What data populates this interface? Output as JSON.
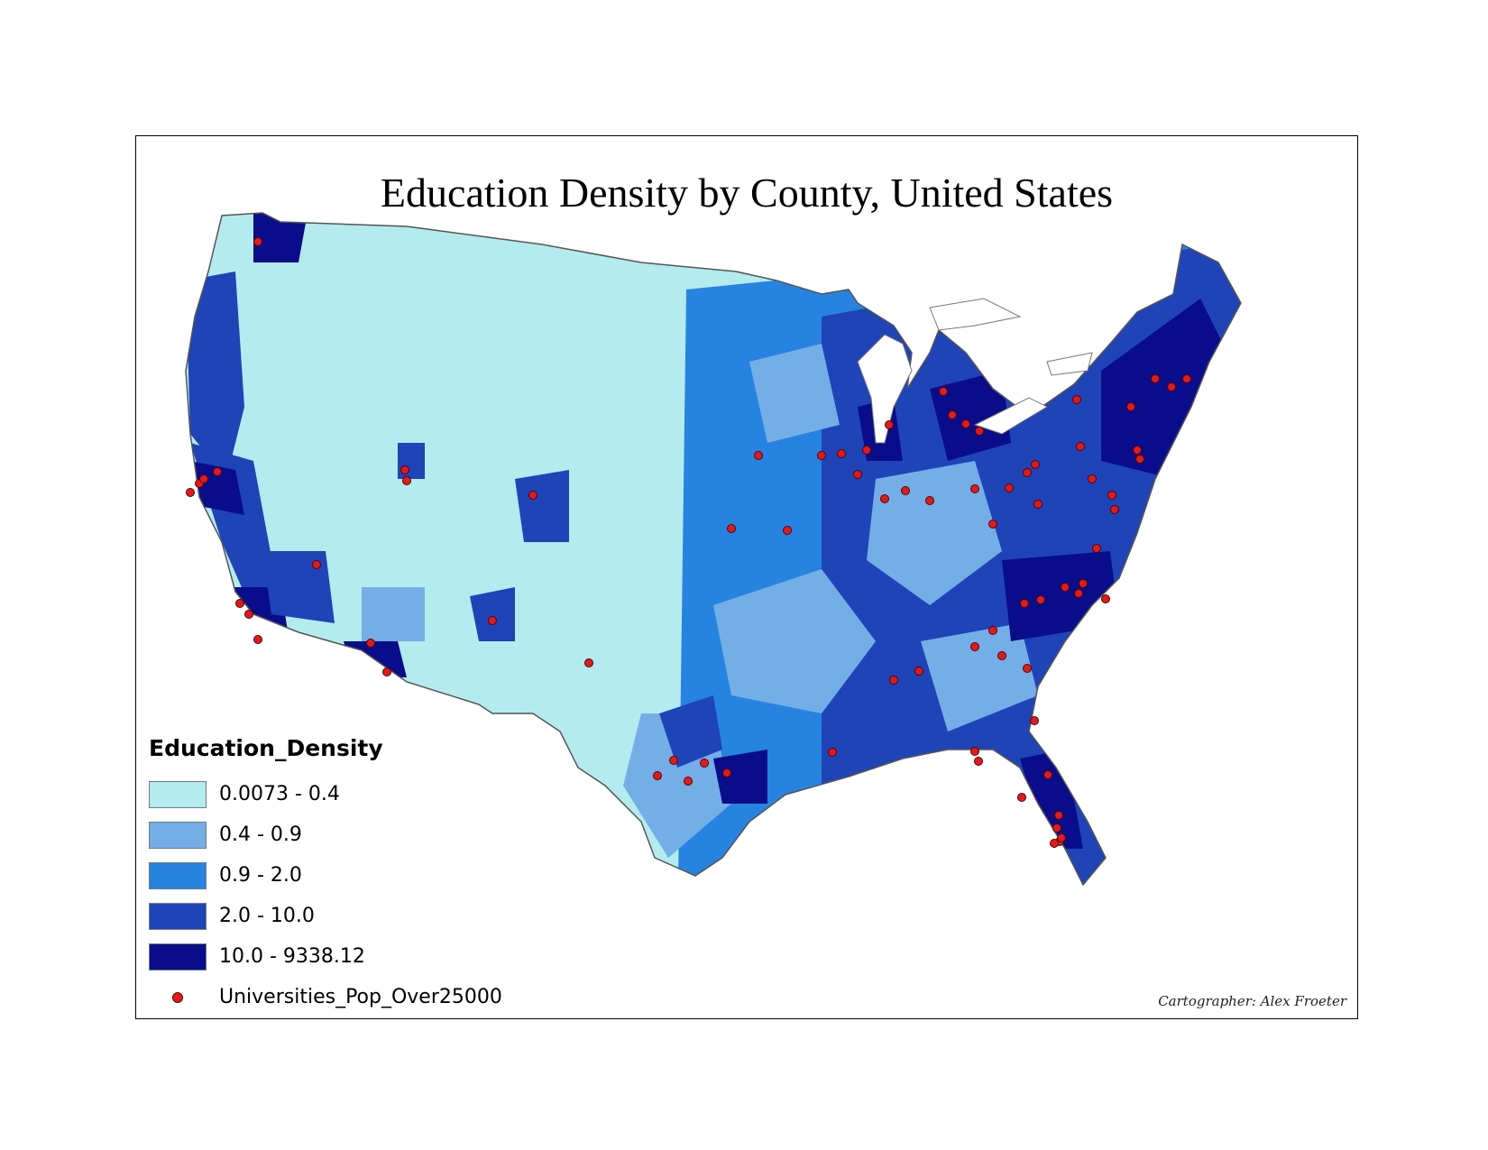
{
  "map": {
    "title": "Education Density by County, United States",
    "credit": "Cartographer: Alex Froeter",
    "colors": {
      "class1": "#b3ebee",
      "class2": "#73aee6",
      "class3": "#2684e0",
      "class4": "#1f44b8",
      "class5": "#0a0d8a",
      "university": "#e31a1c"
    }
  },
  "legend": {
    "title": "Education_Density",
    "classes": [
      {
        "label": "0.0073 - 0.4",
        "color": "#b3ebee"
      },
      {
        "label": "0.4 - 0.9",
        "color": "#73aee6"
      },
      {
        "label": "0.9 - 2.0",
        "color": "#2684e0"
      },
      {
        "label": "2.0 - 10.0",
        "color": "#1f44b8"
      },
      {
        "label": "10.0 - 9338.12",
        "color": "#0a0d8a"
      }
    ],
    "points_label": "Universities_Pop_Over25000"
  }
}
